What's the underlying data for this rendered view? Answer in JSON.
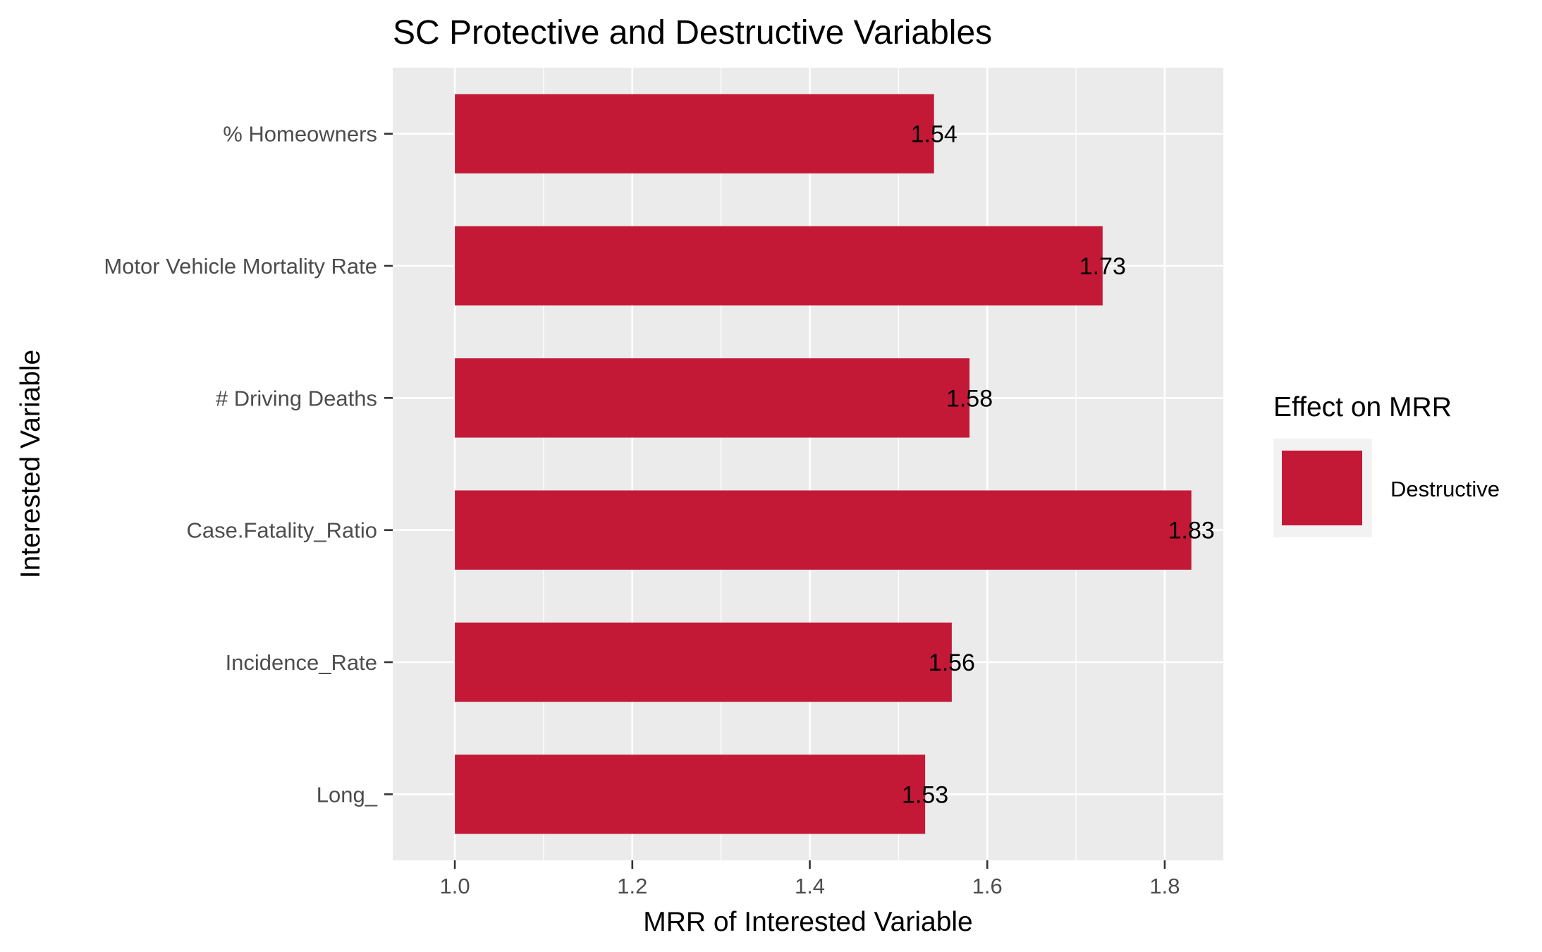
{
  "chart_data": {
    "type": "bar",
    "orientation": "horizontal",
    "title": "SC Protective and Destructive Variables",
    "xlabel": "MRR of Interested Variable",
    "ylabel": "Interested Variable",
    "categories": [
      "% Homeowners",
      "Motor Vehicle Mortality Rate",
      "# Driving Deaths",
      "Case.Fatality_Ratio",
      "Incidence_Rate",
      "Long_"
    ],
    "series": [
      {
        "name": "Destructive",
        "values": [
          1.54,
          1.73,
          1.58,
          1.83,
          1.56,
          1.53
        ],
        "labels": [
          "1.54",
          "1.73",
          "1.58",
          "1.83",
          "1.56",
          "1.53"
        ]
      }
    ],
    "baseline": 1.0,
    "xlim": [
      0.93,
      1.866
    ],
    "xticks": [
      1.0,
      1.2,
      1.4,
      1.6,
      1.8
    ],
    "xtick_labels": [
      "1.0",
      "1.2",
      "1.4",
      "1.6",
      "1.8"
    ],
    "grid": true,
    "legend": {
      "title": "Effect on MRR",
      "entries": [
        "Destructive"
      ],
      "position": "right"
    },
    "colors": {
      "bar": "#c41837",
      "panel": "#ebebeb",
      "grid": "#ffffff"
    }
  }
}
